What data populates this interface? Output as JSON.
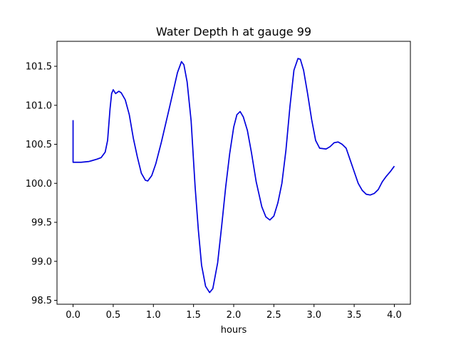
{
  "chart_data": {
    "type": "line",
    "title": "Water Depth h at gauge 99",
    "xlabel": "hours",
    "ylabel": "",
    "xlim": [
      -0.2,
      4.2
    ],
    "ylim": [
      98.45,
      101.82
    ],
    "grid": false,
    "legend": "none",
    "x_ticks": [
      0.0,
      0.5,
      1.0,
      1.5,
      2.0,
      2.5,
      3.0,
      3.5,
      4.0
    ],
    "x_tick_labels": [
      "0.0",
      "0.5",
      "1.0",
      "1.5",
      "2.0",
      "2.5",
      "3.0",
      "3.5",
      "4.0"
    ],
    "y_ticks": [
      98.5,
      99.0,
      99.5,
      100.0,
      100.5,
      101.0,
      101.5
    ],
    "y_tick_labels": [
      "98.5",
      "99.0",
      "99.5",
      "100.0",
      "100.5",
      "101.0",
      "101.5"
    ],
    "series": [
      {
        "color": "#0000dd",
        "points": [
          [
            0.0,
            100.81
          ],
          [
            0.0,
            100.27
          ],
          [
            0.1,
            100.27
          ],
          [
            0.2,
            100.28
          ],
          [
            0.3,
            100.31
          ],
          [
            0.35,
            100.33
          ],
          [
            0.4,
            100.4
          ],
          [
            0.43,
            100.55
          ],
          [
            0.46,
            100.95
          ],
          [
            0.48,
            101.15
          ],
          [
            0.5,
            101.2
          ],
          [
            0.53,
            101.15
          ],
          [
            0.57,
            101.18
          ],
          [
            0.6,
            101.16
          ],
          [
            0.65,
            101.07
          ],
          [
            0.7,
            100.88
          ],
          [
            0.75,
            100.58
          ],
          [
            0.8,
            100.34
          ],
          [
            0.85,
            100.13
          ],
          [
            0.9,
            100.04
          ],
          [
            0.93,
            100.03
          ],
          [
            0.98,
            100.1
          ],
          [
            1.03,
            100.25
          ],
          [
            1.1,
            100.53
          ],
          [
            1.2,
            100.97
          ],
          [
            1.3,
            101.42
          ],
          [
            1.35,
            101.56
          ],
          [
            1.38,
            101.52
          ],
          [
            1.42,
            101.3
          ],
          [
            1.47,
            100.8
          ],
          [
            1.52,
            99.95
          ],
          [
            1.56,
            99.4
          ],
          [
            1.6,
            98.95
          ],
          [
            1.65,
            98.68
          ],
          [
            1.7,
            98.6
          ],
          [
            1.74,
            98.65
          ],
          [
            1.8,
            98.98
          ],
          [
            1.85,
            99.45
          ],
          [
            1.9,
            99.95
          ],
          [
            1.95,
            100.38
          ],
          [
            2.0,
            100.72
          ],
          [
            2.04,
            100.88
          ],
          [
            2.08,
            100.92
          ],
          [
            2.12,
            100.85
          ],
          [
            2.17,
            100.68
          ],
          [
            2.22,
            100.4
          ],
          [
            2.28,
            100.02
          ],
          [
            2.35,
            99.7
          ],
          [
            2.4,
            99.57
          ],
          [
            2.45,
            99.53
          ],
          [
            2.5,
            99.58
          ],
          [
            2.55,
            99.75
          ],
          [
            2.6,
            100.0
          ],
          [
            2.65,
            100.42
          ],
          [
            2.7,
            100.98
          ],
          [
            2.75,
            101.45
          ],
          [
            2.8,
            101.6
          ],
          [
            2.83,
            101.59
          ],
          [
            2.87,
            101.45
          ],
          [
            2.92,
            101.15
          ],
          [
            2.97,
            100.82
          ],
          [
            3.02,
            100.55
          ],
          [
            3.07,
            100.45
          ],
          [
            3.15,
            100.44
          ],
          [
            3.2,
            100.47
          ],
          [
            3.25,
            100.52
          ],
          [
            3.3,
            100.53
          ],
          [
            3.35,
            100.5
          ],
          [
            3.4,
            100.45
          ],
          [
            3.45,
            100.3
          ],
          [
            3.5,
            100.15
          ],
          [
            3.55,
            100.0
          ],
          [
            3.6,
            99.91
          ],
          [
            3.65,
            99.86
          ],
          [
            3.7,
            99.85
          ],
          [
            3.75,
            99.87
          ],
          [
            3.8,
            99.92
          ],
          [
            3.85,
            100.02
          ],
          [
            3.9,
            100.09
          ],
          [
            3.95,
            100.15
          ],
          [
            4.0,
            100.22
          ]
        ]
      }
    ]
  }
}
